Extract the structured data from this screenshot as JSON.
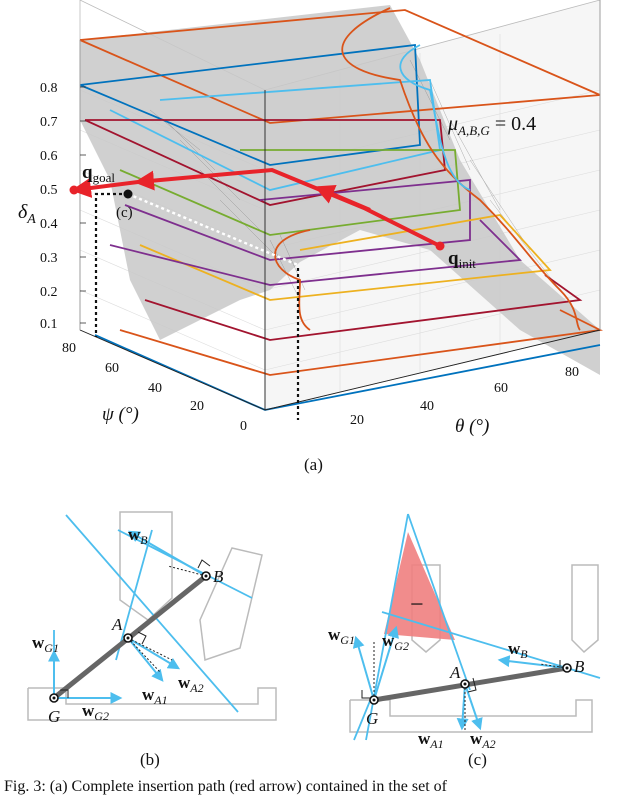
{
  "plot3d": {
    "z_axis_label": "δ",
    "z_axis_sub": "A",
    "z_ticks": [
      "0.8",
      "0.7",
      "0.6",
      "0.5",
      "0.4",
      "0.3",
      "0.2",
      "0.1"
    ],
    "psi_axis_label": "ψ (°)",
    "psi_ticks": [
      "80",
      "60",
      "40",
      "20",
      "0"
    ],
    "theta_axis_label": "θ (°)",
    "theta_ticks": [
      "20",
      "40",
      "60",
      "80"
    ],
    "mu_label": "μ",
    "mu_sub": "A,B,G",
    "mu_value": " = 0.4",
    "q_goal": "q",
    "q_goal_sub": "goal",
    "q_init": "q",
    "q_init_sub": "init",
    "marker_c": "(c)",
    "colors": {
      "orange": "#d9541a",
      "blue": "#0072bd",
      "lightblue": "#4dbeee",
      "darkred": "#a2142f",
      "green": "#77ac30",
      "purple": "#7e2f8e",
      "yellow": "#edb120",
      "path": "#e8232a",
      "surface": "#c8c8c8"
    }
  },
  "panel_b": {
    "w_B": "w",
    "w_B_sub": "B",
    "w_G1": "w",
    "w_G1_sub": "G1",
    "w_G2": "w",
    "w_G2_sub": "G2",
    "w_A1": "w",
    "w_A1_sub": "A1",
    "w_A2": "w",
    "w_A2_sub": "A2",
    "pt_A": "A",
    "pt_B": "B",
    "pt_G": "G"
  },
  "panel_c": {
    "w_B": "w",
    "w_B_sub": "B",
    "w_G1": "w",
    "w_G1_sub": "G1",
    "w_G2": "w",
    "w_G2_sub": "G2",
    "w_A1": "w",
    "w_A1_sub": "A1",
    "w_A2": "w",
    "w_A2_sub": "A2",
    "pt_A": "A",
    "pt_B": "B",
    "pt_G": "G",
    "minus": "−"
  },
  "captions": {
    "a": "(a)",
    "b": "(b)",
    "c": "(c)",
    "figure": "Fig. 3: (a) Complete insertion path (red arrow) contained in the set of"
  }
}
